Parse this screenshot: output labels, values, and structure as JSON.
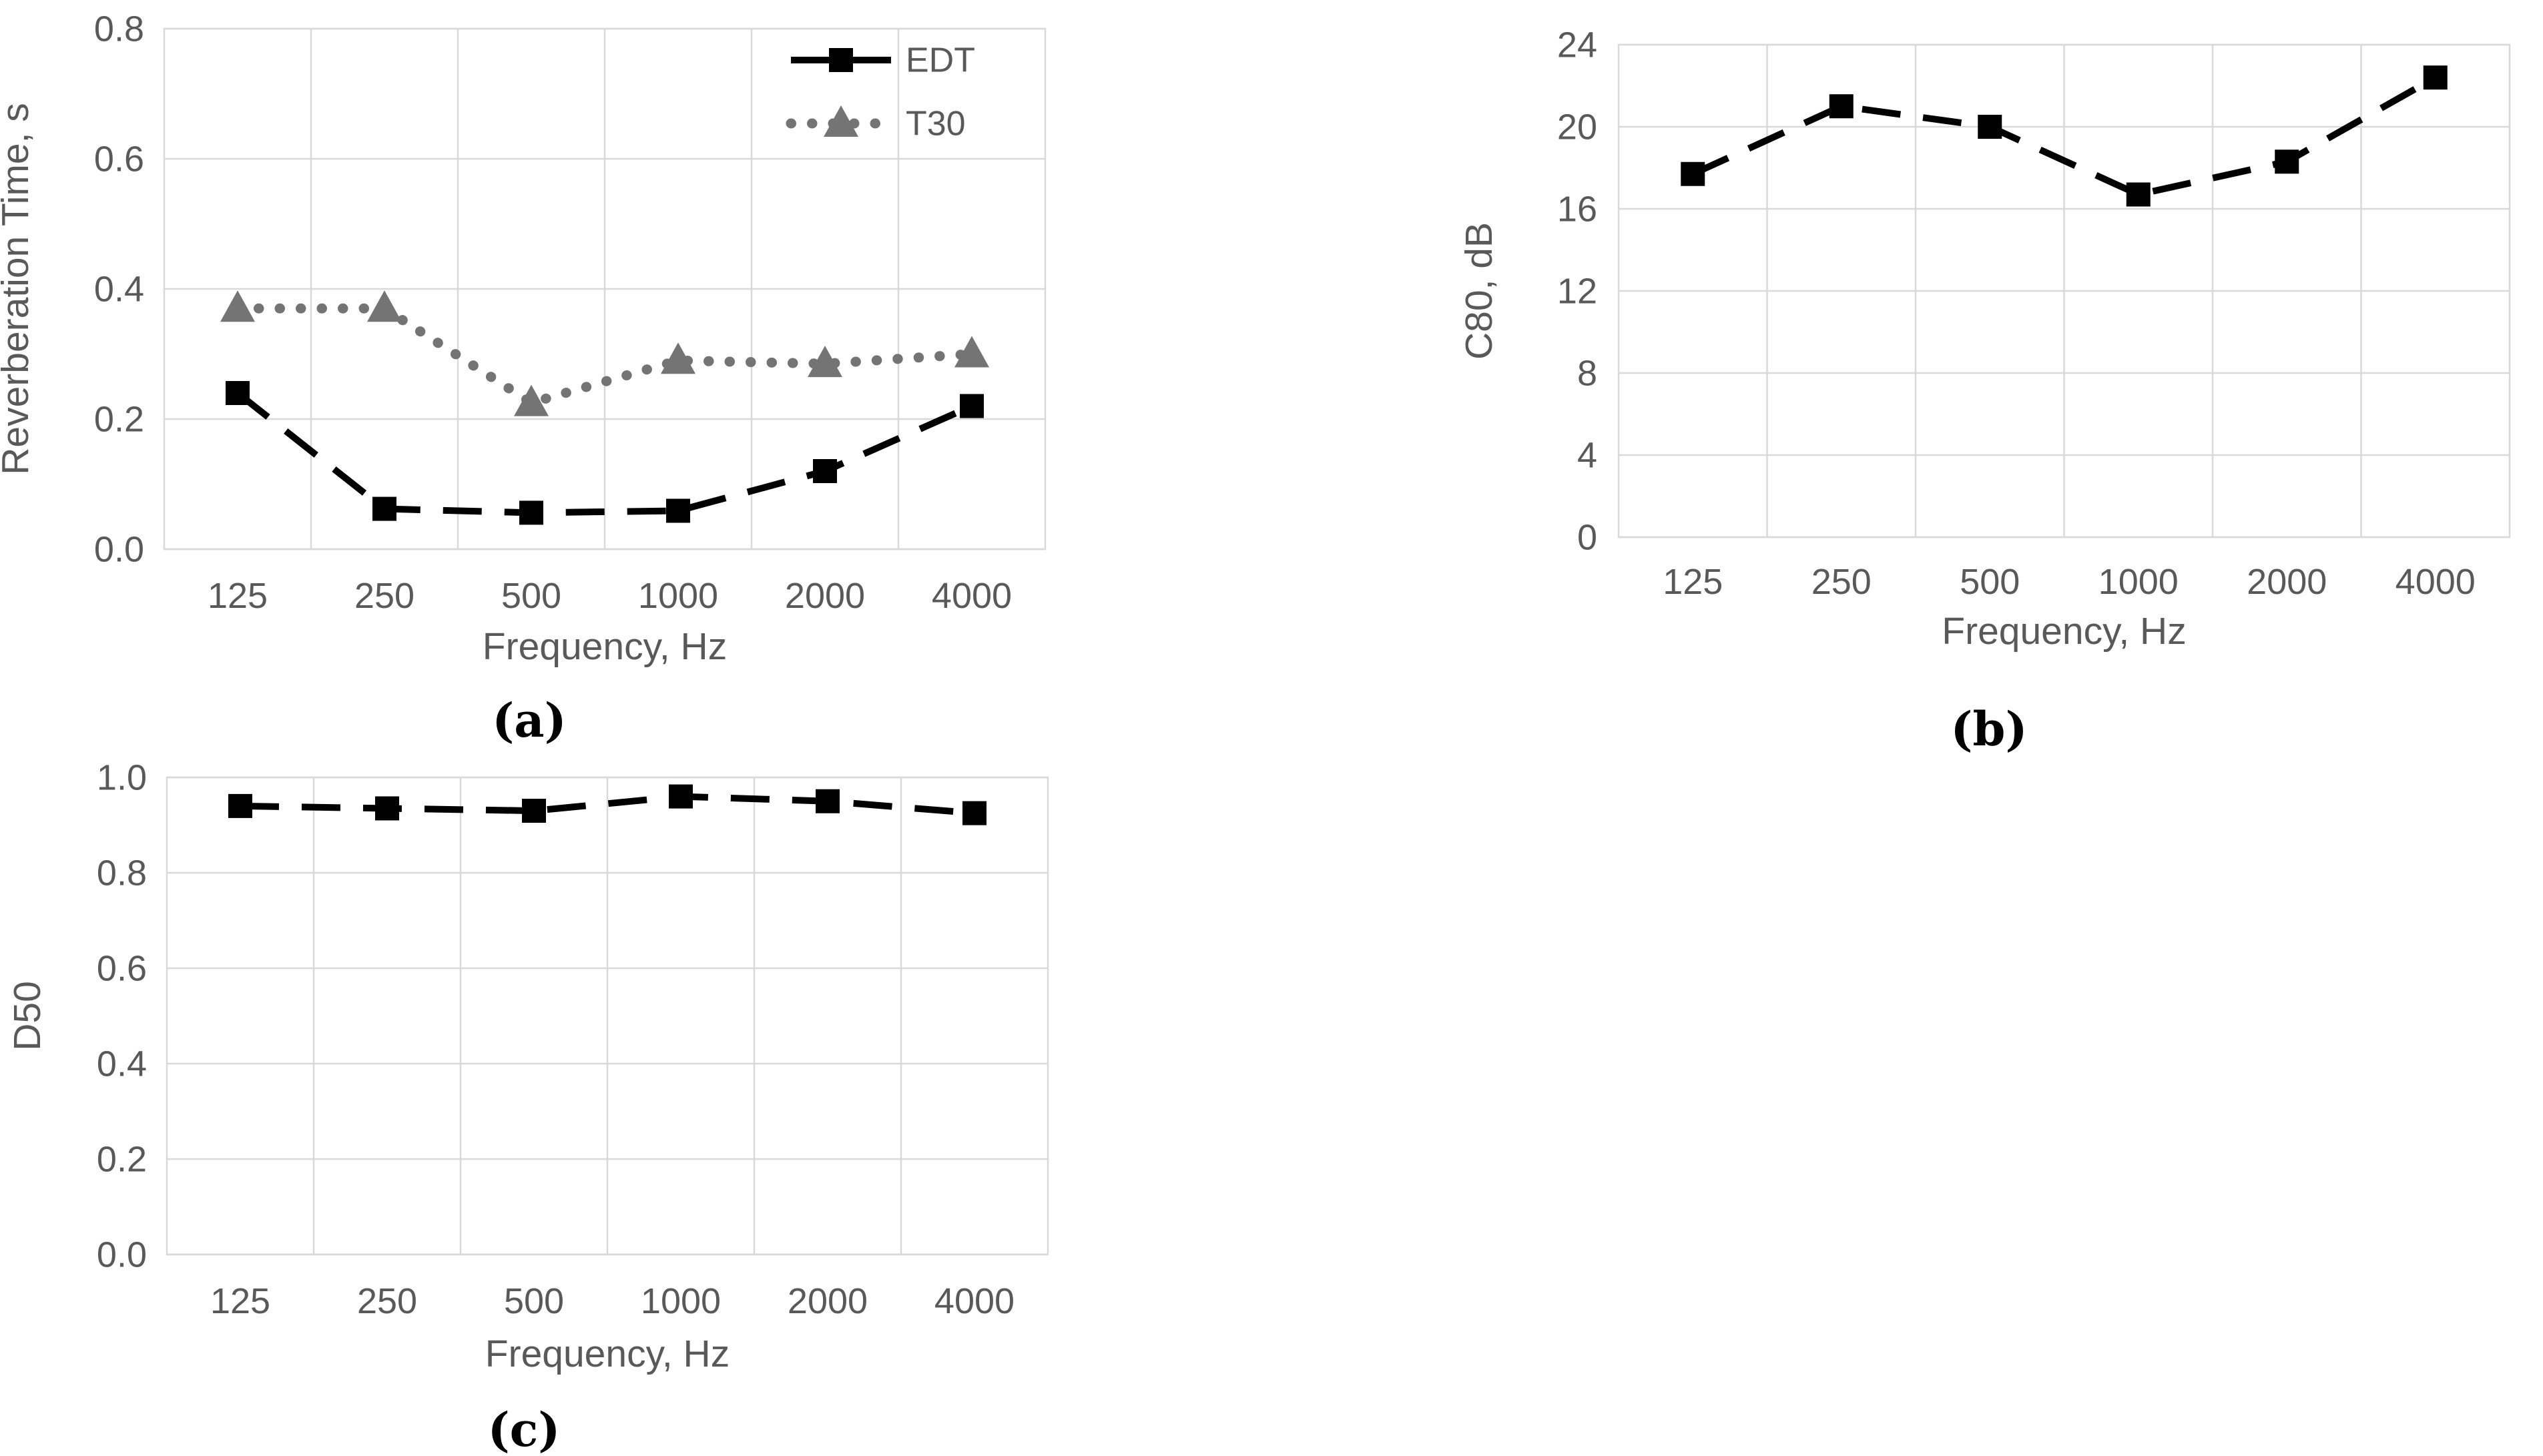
{
  "figure": {
    "background": "#ffffff"
  },
  "colors": {
    "series_black": "#000000",
    "series_gray": "#747474",
    "gridline": "#d9d9d9",
    "axis_text": "#595959"
  },
  "chart_data": [
    {
      "id": "chart-a",
      "type": "line",
      "caption": "(a)",
      "xlabel": "Frequency, Hz",
      "ylabel": "Reverberation Time, s",
      "categories": [
        "125",
        "250",
        "500",
        "1000",
        "2000",
        "4000"
      ],
      "ylim": [
        0,
        0.8
      ],
      "yticks": [
        0,
        0.2,
        0.4,
        0.6,
        0.8
      ],
      "ytick_labels": [
        "0.0",
        "0.2",
        "0.4",
        "0.6",
        "0.8"
      ],
      "grid": true,
      "legend_position": "top-right-inside",
      "legend_entries": [
        "EDT",
        "T30"
      ],
      "series": [
        {
          "name": "EDT",
          "values": [
            0.24,
            0.062,
            0.056,
            0.059,
            0.12,
            0.22
          ],
          "color": "#000000",
          "line_style": "dashed",
          "marker": "square"
        },
        {
          "name": "T30",
          "values": [
            0.37,
            0.37,
            0.225,
            0.29,
            0.285,
            0.3
          ],
          "color": "#747474",
          "line_style": "dotted",
          "marker": "triangle"
        }
      ]
    },
    {
      "id": "chart-b",
      "type": "line",
      "caption": "(b)",
      "xlabel": "Frequency, Hz",
      "ylabel": "C80, dB",
      "categories": [
        "125",
        "250",
        "500",
        "1000",
        "2000",
        "4000"
      ],
      "ylim": [
        0,
        24
      ],
      "yticks": [
        0,
        4,
        8,
        12,
        16,
        20,
        24
      ],
      "ytick_labels": [
        "0",
        "4",
        "8",
        "12",
        "16",
        "20",
        "24"
      ],
      "grid": true,
      "legend_position": "none",
      "legend_entries": [],
      "series": [
        {
          "name": "C80",
          "values": [
            17.7,
            21.0,
            20.0,
            16.7,
            18.3,
            22.4
          ],
          "color": "#000000",
          "line_style": "dashed",
          "marker": "square"
        }
      ]
    },
    {
      "id": "chart-c",
      "type": "line",
      "caption": "(c)",
      "xlabel": "Frequency, Hz",
      "ylabel": "D50",
      "categories": [
        "125",
        "250",
        "500",
        "1000",
        "2000",
        "4000"
      ],
      "ylim": [
        0,
        1.0
      ],
      "yticks": [
        0,
        0.2,
        0.4,
        0.6,
        0.8,
        1.0
      ],
      "ytick_labels": [
        "0.0",
        "0.2",
        "0.4",
        "0.6",
        "0.8",
        "1.0"
      ],
      "grid": true,
      "legend_position": "none",
      "legend_entries": [],
      "series": [
        {
          "name": "D50",
          "values": [
            0.94,
            0.935,
            0.93,
            0.96,
            0.95,
            0.925
          ],
          "color": "#000000",
          "line_style": "dashed",
          "marker": "square"
        }
      ]
    }
  ]
}
